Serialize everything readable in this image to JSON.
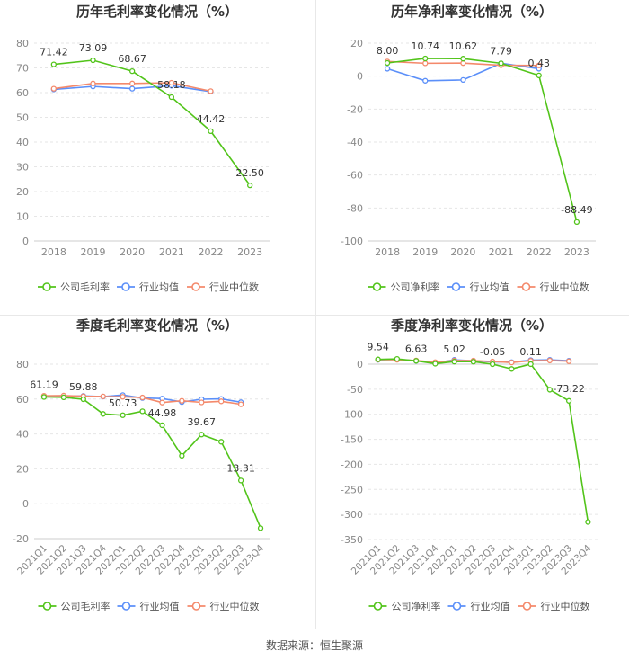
{
  "source": "数据来源：恒生聚源",
  "colors": {
    "company": "#52c41a",
    "industry_avg": "#5b8ff9",
    "industry_median": "#f4896b",
    "grid": "#e6e6e6",
    "axis_text": "#888888",
    "title": "#333333"
  },
  "chart_data": [
    {
      "type": "line",
      "title": "历年毛利率变化情况（%）",
      "categories": [
        "2018",
        "2019",
        "2020",
        "2021",
        "2022",
        "2023"
      ],
      "ylim": [
        0,
        80
      ],
      "yticks": [
        0,
        10,
        20,
        30,
        40,
        50,
        60,
        70,
        80
      ],
      "series": [
        {
          "name": "公司毛利率",
          "key": "company",
          "values": [
            71.42,
            73.09,
            68.67,
            58.18,
            44.42,
            22.5
          ]
        },
        {
          "name": "行业均值",
          "key": "industry_avg",
          "values": [
            61.3,
            62.5,
            61.6,
            62.8,
            60.4,
            null
          ]
        },
        {
          "name": "行业中位数",
          "key": "industry_median",
          "values": [
            61.6,
            63.7,
            63.7,
            64.0,
            60.6,
            null
          ]
        }
      ],
      "labels": [
        {
          "i": 0,
          "text": "71.42"
        },
        {
          "i": 1,
          "text": "73.09"
        },
        {
          "i": 2,
          "text": "68.67"
        },
        {
          "i": 3,
          "text": "58.18"
        },
        {
          "i": 4,
          "text": "44.42"
        },
        {
          "i": 5,
          "text": "22.50"
        }
      ],
      "legend": [
        "公司毛利率",
        "行业均值",
        "行业中位数"
      ]
    },
    {
      "type": "line",
      "title": "历年净利率变化情况（%）",
      "categories": [
        "2018",
        "2019",
        "2020",
        "2021",
        "2022",
        "2023"
      ],
      "ylim": [
        -100,
        20
      ],
      "yticks": [
        -100,
        -80,
        -60,
        -40,
        -20,
        0,
        20
      ],
      "series": [
        {
          "name": "公司净利率",
          "key": "company",
          "values": [
            8.0,
            10.74,
            10.62,
            7.79,
            0.43,
            -88.49
          ]
        },
        {
          "name": "行业均值",
          "key": "industry_avg",
          "values": [
            4.5,
            -2.8,
            -2.3,
            7.8,
            4.5,
            null
          ]
        },
        {
          "name": "行业中位数",
          "key": "industry_median",
          "values": [
            8.9,
            7.8,
            7.9,
            6.6,
            6.5,
            null
          ]
        }
      ],
      "labels": [
        {
          "i": 0,
          "text": "8.00"
        },
        {
          "i": 1,
          "text": "10.74"
        },
        {
          "i": 2,
          "text": "10.62"
        },
        {
          "i": 3,
          "text": "7.79"
        },
        {
          "i": 4,
          "text": "0.43"
        },
        {
          "i": 5,
          "text": "-88.49"
        }
      ],
      "legend": [
        "公司净利率",
        "行业均值",
        "行业中位数"
      ]
    },
    {
      "type": "line",
      "title": "季度毛利率变化情况（%）",
      "categories": [
        "2021Q1",
        "2021Q2",
        "2021Q3",
        "2021Q4",
        "2022Q1",
        "2022Q2",
        "2022Q3",
        "2022Q4",
        "2023Q1",
        "2023Q2",
        "2023Q3",
        "2023Q4"
      ],
      "ylim": [
        -20,
        80
      ],
      "yticks": [
        -20,
        0,
        20,
        40,
        60,
        80
      ],
      "series": [
        {
          "name": "公司毛利率",
          "key": "company",
          "values": [
            61.19,
            61.0,
            59.88,
            51.5,
            50.73,
            53.0,
            44.98,
            27.5,
            39.67,
            35.5,
            13.31,
            -14.0
          ]
        },
        {
          "name": "行业均值",
          "key": "industry_avg",
          "values": [
            61.3,
            61.6,
            61.8,
            61.4,
            62.3,
            60.6,
            60.3,
            58.3,
            59.9,
            60.1,
            58.2,
            null
          ]
        },
        {
          "name": "行业中位数",
          "key": "industry_median",
          "values": [
            61.9,
            62.0,
            61.6,
            61.5,
            61.3,
            60.9,
            58.0,
            59.0,
            58.1,
            58.7,
            57.0,
            null
          ]
        }
      ],
      "labels": [
        {
          "i": 0,
          "text": "61.19"
        },
        {
          "i": 2,
          "text": "59.88"
        },
        {
          "i": 4,
          "text": "50.73"
        },
        {
          "i": 6,
          "text": "44.98"
        },
        {
          "i": 8,
          "text": "39.67"
        },
        {
          "i": 10,
          "text": "13.31"
        }
      ],
      "legend": [
        "公司毛利率",
        "行业均值",
        "行业中位数"
      ]
    },
    {
      "type": "line",
      "title": "季度净利率变化情况（%）",
      "categories": [
        "2021Q1",
        "2021Q2",
        "2021Q3",
        "2021Q4",
        "2022Q1",
        "2022Q2",
        "2022Q3",
        "2022Q4",
        "2023Q1",
        "2023Q2",
        "2023Q3",
        "2023Q4"
      ],
      "ylim": [
        -350,
        0
      ],
      "yticks": [
        -350,
        -300,
        -250,
        -200,
        -150,
        -100,
        -50,
        0
      ],
      "series": [
        {
          "name": "公司净利率",
          "key": "company",
          "values": [
            9.54,
            10.5,
            6.63,
            1.0,
            5.02,
            5.0,
            -0.05,
            -9.5,
            0.11,
            -51.0,
            -73.22,
            -315.0
          ]
        },
        {
          "name": "行业均值",
          "key": "industry_avg",
          "values": [
            8.6,
            9.8,
            6.7,
            2.4,
            8.6,
            6.6,
            4.5,
            4.0,
            8.1,
            8.6,
            6.8,
            null
          ]
        },
        {
          "name": "行业中位数",
          "key": "industry_median",
          "values": [
            9.0,
            8.8,
            7.4,
            4.0,
            7.3,
            7.1,
            5.3,
            3.3,
            6.8,
            7.3,
            5.9,
            null
          ]
        }
      ],
      "labels": [
        {
          "i": 0,
          "text": "9.54"
        },
        {
          "i": 2,
          "text": "6.63"
        },
        {
          "i": 4,
          "text": "5.02"
        },
        {
          "i": 6,
          "text": "-0.05"
        },
        {
          "i": 8,
          "text": "0.11"
        },
        {
          "i": 10,
          "text": "-73.22"
        }
      ],
      "legend": [
        "公司净利率",
        "行业均值",
        "行业中位数"
      ]
    }
  ]
}
